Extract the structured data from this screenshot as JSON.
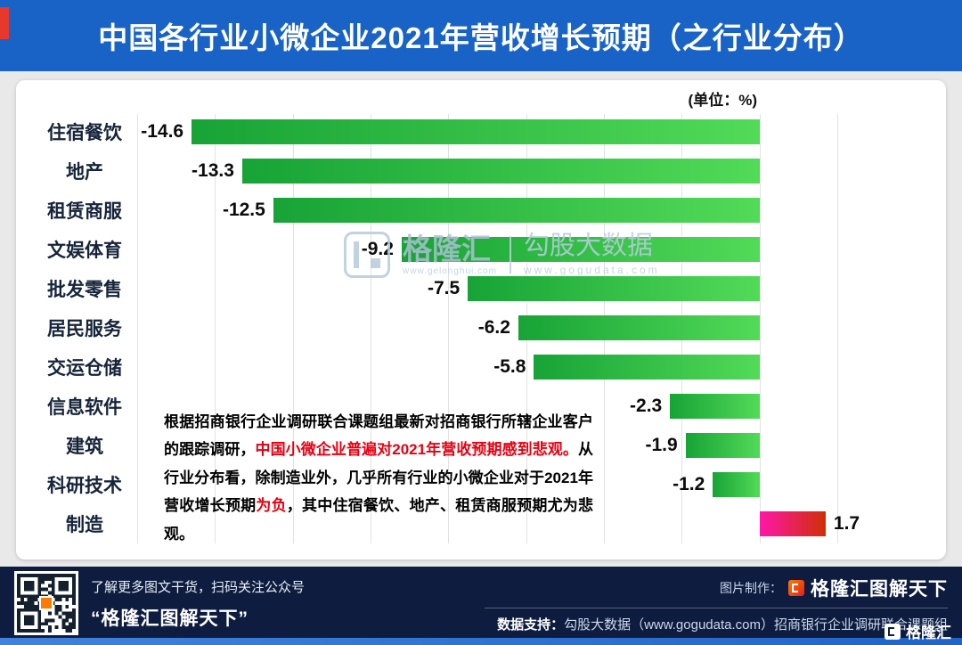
{
  "colors": {
    "page_bg": "#e9e9e9",
    "header_bg": "#1a63c6",
    "footer_bg": "#0e1d3f",
    "red_accent": "#e60012",
    "strip_gradient": [
      "#3f83dc",
      "#1f64c8"
    ]
  },
  "header": {
    "title": "中国各行业小微企业2021年营收增长预期（之行业分布）"
  },
  "chart_data": {
    "type": "bar",
    "orientation": "horizontal",
    "title": "中国各行业小微企业2021年营收增长预期（之行业分布）",
    "unit_label": "(单位：%)",
    "categories": [
      "住宿餐饮",
      "地产",
      "租赁商服",
      "文娱体育",
      "批发零售",
      "居民服务",
      "交运仓储",
      "信息软件",
      "建筑",
      "科研技术",
      "制造"
    ],
    "values": [
      -14.6,
      -13.3,
      -12.5,
      -9.2,
      -7.5,
      -6.2,
      -5.8,
      -2.3,
      -1.9,
      -1.2,
      1.7
    ],
    "xlim": [
      -16,
      2
    ],
    "grid_step": 2,
    "grid": true,
    "legend": false,
    "negative_bar_gradient": [
      "#17a336",
      "#52da58"
    ],
    "positive_bar_gradient": [
      "#ff17a8",
      "#cf2f05"
    ]
  },
  "watermark": {
    "brand": "格隆汇",
    "brand_url": "www.gelonghui.com",
    "partner": "勾股大数据",
    "partner_url": "www.gogudata.com"
  },
  "annotation": {
    "segments": [
      {
        "text": "根据招商银行企业调研联合课题组最新对招商银行所辖企业客户的跟踪调研，",
        "red": false
      },
      {
        "text": "中国小微企业普遍对2021年营收预期感到悲观。",
        "red": true
      },
      {
        "text": "从行业分布看，除制造业外，几乎所有行业的小微企业对于2021年营收增长预期",
        "red": false
      },
      {
        "text": "为负",
        "red": true
      },
      {
        "text": "，其中住宿餐饮、地产、租赁商服预期尤为悲观。",
        "red": false
      }
    ]
  },
  "footer": {
    "qr_caption": "了解更多图文干货，扫码关注公众号",
    "account_name": "“格隆汇图解天下”",
    "credit_label": "图片制作：",
    "credit_brand": "格隆汇图解天下",
    "support_label": "数据支持：",
    "support_text": "勾股大数据（www.gogudata.com）招商银行企业调研联合课题组",
    "corner_brand": "格隆汇"
  }
}
